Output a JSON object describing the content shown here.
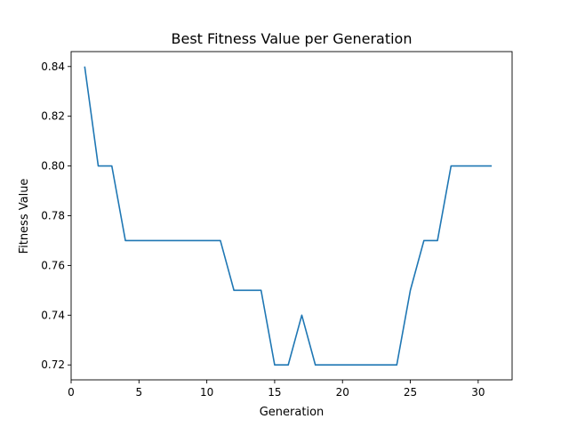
{
  "chart_data": {
    "type": "line",
    "title": "Best Fitness Value per Generation",
    "xlabel": "Generation",
    "ylabel": "Fitness Value",
    "xlim": [
      0.0,
      32.5
    ],
    "ylim": [
      0.714,
      0.846
    ],
    "x_ticks": [
      0,
      5,
      10,
      15,
      20,
      25,
      30
    ],
    "y_ticks": [
      0.72,
      0.74,
      0.76,
      0.78,
      0.8,
      0.82,
      0.84
    ],
    "y_tick_labels": [
      "0.72",
      "0.74",
      "0.76",
      "0.78",
      "0.80",
      "0.82",
      "0.84"
    ],
    "grid": false,
    "line_color": "#1f77b4",
    "series": [
      {
        "x": [
          1,
          2,
          3,
          4,
          5,
          6,
          7,
          8,
          9,
          10,
          11,
          12,
          13,
          14,
          15,
          16,
          17,
          18,
          19,
          20,
          21,
          22,
          23,
          24,
          25,
          26,
          27,
          28,
          29,
          30,
          31
        ],
        "values": [
          0.84,
          0.8,
          0.8,
          0.77,
          0.77,
          0.77,
          0.77,
          0.77,
          0.77,
          0.77,
          0.77,
          0.75,
          0.75,
          0.75,
          0.72,
          0.72,
          0.74,
          0.72,
          0.72,
          0.72,
          0.72,
          0.72,
          0.72,
          0.72,
          0.75,
          0.77,
          0.77,
          0.8,
          0.8,
          0.8,
          0.8
        ]
      }
    ]
  }
}
